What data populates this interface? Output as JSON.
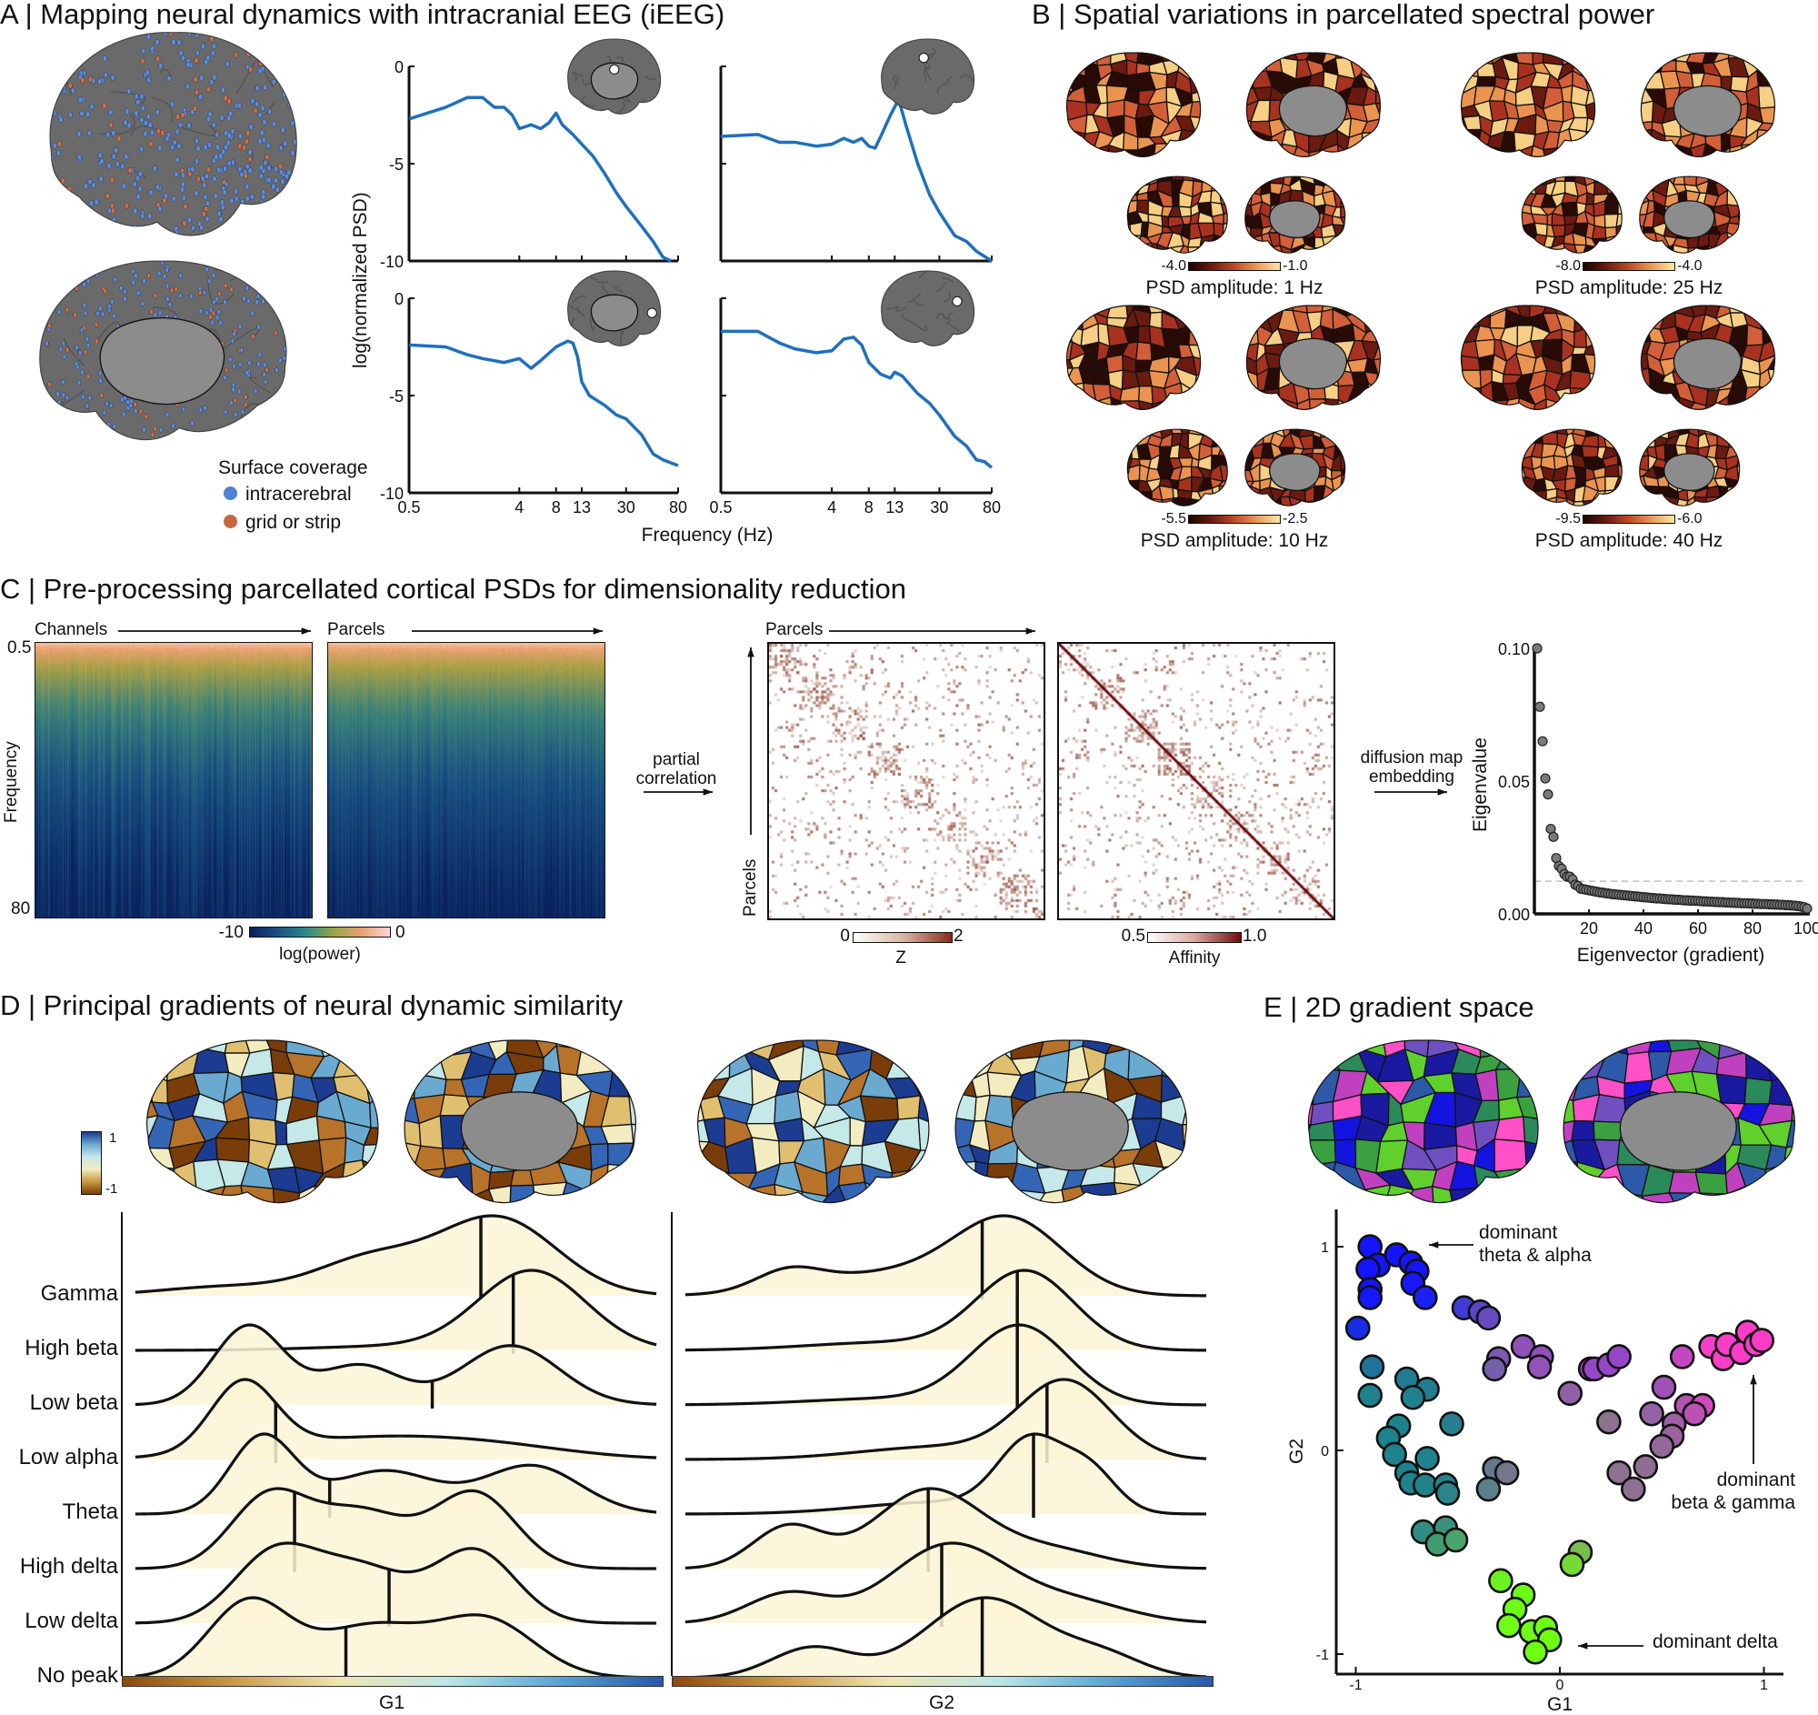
{
  "panels": {
    "A": {
      "title": "A | Mapping neural dynamics with intracranial EEG (iEEG)",
      "legend": {
        "title": "Surface coverage",
        "items": [
          {
            "label": "intracerebral",
            "color": "#4f82d6"
          },
          {
            "label": "grid or strip",
            "color": "#c8683f"
          }
        ]
      }
    },
    "B": {
      "title": "B | Spatial variations in parcellated spectral power",
      "maps": [
        {
          "label": "PSD amplitude: 1 Hz",
          "min": "-4.0",
          "max": "-1.0"
        },
        {
          "label": "PSD amplitude: 25 Hz",
          "min": "-8.0",
          "max": "-4.0"
        },
        {
          "label": "PSD amplitude: 10 Hz",
          "min": "-5.5",
          "max": "-2.5"
        },
        {
          "label": "PSD amplitude: 40 Hz",
          "min": "-9.5",
          "max": "-6.0"
        }
      ],
      "palette": [
        "#2a0a05",
        "#6b1a10",
        "#a8321f",
        "#d35f38",
        "#ea9450",
        "#f6cf84"
      ]
    },
    "C": {
      "title": "C | Pre-processing parcellated cortical PSDs for dimensionality reduction",
      "channels_label": "Channels",
      "parcels_label": "Parcels",
      "freq_label": "Frequency",
      "freq_top": "0.5",
      "freq_bottom": "80",
      "power_cbar": {
        "min": "-10",
        "max": "0",
        "label": "log(power)"
      },
      "step1": "partial\ncorrelation",
      "step1_lines": [
        "partial",
        "correlation"
      ],
      "step2_lines": [
        "diffusion map",
        "embedding"
      ],
      "matrix_parcels_top": "Parcels",
      "matrix_parcels_side": "Parcels",
      "z_cbar": {
        "min": "0",
        "max": "2",
        "label": "Z"
      },
      "affinity_cbar": {
        "min": "0.5",
        "max": "1.0",
        "label": "Affinity"
      }
    },
    "D": {
      "title": "D | Principal gradients of neural dynamic similarity",
      "cbar": {
        "max": "1",
        "min": "-1"
      },
      "palette": [
        "#7a3d0a",
        "#b8732a",
        "#e0c070",
        "#f2ecc0",
        "#c5e8e8",
        "#6aaad0",
        "#3565b5",
        "#1c3c92"
      ]
    },
    "E": {
      "title": "E | 2D gradient space",
      "palette": [
        "#1414e0",
        "#2c5aa8",
        "#2a8a5a",
        "#5fd02c",
        "#c040c0",
        "#ff50c8",
        "#7050c0",
        "#3aa040",
        "#1a1aa0"
      ],
      "annotations": {
        "theta_alpha": [
          "dominant",
          "theta & alpha"
        ],
        "beta_gamma": [
          "dominant",
          "beta & gamma"
        ],
        "delta": "dominant delta"
      }
    }
  },
  "chart_data": [
    {
      "id": "psd_examples",
      "type": "line",
      "xlabel": "Frequency (Hz)",
      "ylabel": "log(normalized PSD)",
      "xscale": "log",
      "xlim": [
        0.5,
        80
      ],
      "ylim": [
        -10,
        0
      ],
      "xticks": [
        0.5,
        4,
        8,
        13,
        30,
        80
      ],
      "xtick_labels": [
        "0.5",
        "4",
        "8",
        "13",
        "30",
        "80"
      ],
      "yticks": [
        0,
        -5,
        -10
      ],
      "ytick_labels": [
        "0",
        "-5",
        "-10"
      ],
      "color": "#1f6fbf",
      "series": [
        {
          "x": [
            0.5,
            1,
            1.5,
            2,
            2.5,
            3,
            3.5,
            4,
            5,
            6,
            7,
            8,
            9,
            11,
            13,
            16,
            20,
            25,
            30,
            40,
            50,
            60,
            70
          ],
          "y": [
            -2.7,
            -2.1,
            -1.6,
            -1.6,
            -2.1,
            -2.1,
            -2.5,
            -3.2,
            -3.0,
            -3.2,
            -2.9,
            -2.4,
            -3.0,
            -3.5,
            -4.0,
            -4.6,
            -5.5,
            -6.5,
            -7.2,
            -8.2,
            -9.0,
            -9.8,
            -10
          ]
        },
        {
          "x": [
            0.5,
            1,
            1.5,
            2,
            3,
            4,
            5,
            6,
            7,
            8,
            9,
            10,
            12,
            14,
            16,
            20,
            25,
            30,
            40,
            50,
            60,
            80
          ],
          "y": [
            -3.6,
            -3.5,
            -3.9,
            -3.9,
            -4.1,
            -4.0,
            -3.7,
            -3.9,
            -3.7,
            -4.1,
            -4.2,
            -3.6,
            -2.5,
            -1.7,
            -3.0,
            -5.0,
            -6.6,
            -7.5,
            -8.7,
            -9.0,
            -9.5,
            -10
          ]
        },
        {
          "x": [
            0.5,
            1,
            1.5,
            2,
            3,
            4,
            5,
            6,
            8,
            10,
            11,
            12,
            13,
            15,
            20,
            25,
            30,
            40,
            50,
            60,
            80
          ],
          "y": [
            -2.4,
            -2.5,
            -2.9,
            -3.1,
            -3.3,
            -3.1,
            -3.6,
            -3.2,
            -2.5,
            -2.2,
            -2.3,
            -3.0,
            -4.3,
            -5.0,
            -5.5,
            -6.0,
            -6.2,
            -7.0,
            -8.0,
            -8.3,
            -8.6
          ]
        },
        {
          "x": [
            0.5,
            1,
            1.5,
            2,
            3,
            4,
            5,
            6,
            7,
            8,
            10,
            12,
            13,
            15,
            20,
            25,
            30,
            40,
            50,
            60,
            70,
            80
          ],
          "y": [
            -1.7,
            -1.7,
            -2.3,
            -2.6,
            -2.8,
            -2.7,
            -2.1,
            -2.0,
            -2.4,
            -3.3,
            -3.9,
            -4.1,
            -3.8,
            -4.0,
            -4.9,
            -5.4,
            -6.0,
            -7.1,
            -7.6,
            -8.3,
            -8.4,
            -8.7
          ]
        }
      ]
    },
    {
      "id": "eigenvalues",
      "type": "scatter",
      "xlabel": "Eigenvector (gradient)",
      "ylabel": "Eigenvalue",
      "xlim": [
        0,
        100
      ],
      "ylim": [
        0,
        0.1
      ],
      "xticks": [
        20,
        40,
        60,
        80,
        100
      ],
      "xtick_labels": [
        "20",
        "40",
        "60",
        "80",
        "100"
      ],
      "yticks": [
        0,
        0.05,
        0.1
      ],
      "ytick_labels": [
        "0.00",
        "0.05",
        "0.10"
      ],
      "threshold": 0.0123,
      "values": [
        0.1,
        0.078,
        0.065,
        0.051,
        0.045,
        0.032,
        0.029,
        0.021,
        0.018,
        0.017,
        0.015,
        0.014,
        0.014,
        0.013,
        0.011,
        0.0105,
        0.0095,
        0.0093,
        0.0091,
        0.0089,
        0.0087,
        0.0085,
        0.0083,
        0.0081,
        0.008,
        0.0078,
        0.0077,
        0.0075,
        0.0074,
        0.0073,
        0.0072,
        0.0071,
        0.007,
        0.0069,
        0.0068,
        0.0067,
        0.0066,
        0.0065,
        0.0064,
        0.0063,
        0.0062,
        0.0061,
        0.006,
        0.0059,
        0.0058,
        0.0058,
        0.0057,
        0.0056,
        0.0055,
        0.0055,
        0.0054,
        0.0053,
        0.0053,
        0.0052,
        0.0051,
        0.0051,
        0.005,
        0.005,
        0.0049,
        0.0049,
        0.0048,
        0.0047,
        0.0047,
        0.0046,
        0.0046,
        0.0045,
        0.0045,
        0.0044,
        0.0044,
        0.0043,
        0.0043,
        0.0042,
        0.0042,
        0.0041,
        0.0041,
        0.004,
        0.004,
        0.004,
        0.0039,
        0.0039,
        0.0038,
        0.0038,
        0.0037,
        0.0037,
        0.0037,
        0.0036,
        0.0036,
        0.0035,
        0.0035,
        0.0034,
        0.0034,
        0.0033,
        0.0033,
        0.0032,
        0.0031,
        0.003,
        0.0029,
        0.0027,
        0.0025,
        0.002
      ]
    },
    {
      "id": "ridge_g1",
      "type": "area",
      "xlabel": "G1",
      "xlim": [
        -1,
        1
      ],
      "rows": [
        {
          "label": "Gamma",
          "median": 0.33,
          "components": [
            [
              0.39,
              0.22,
              1.0
            ],
            [
              -0.08,
              0.2,
              0.45
            ],
            [
              -0.6,
              0.25,
              0.12
            ]
          ]
        },
        {
          "label": "High beta",
          "median": 0.45,
          "components": [
            [
              0.52,
              0.2,
              1.0
            ],
            [
              0.0,
              0.3,
              0.05
            ]
          ]
        },
        {
          "label": "Low beta",
          "median": 0.15,
          "components": [
            [
              -0.53,
              0.13,
              0.8
            ],
            [
              -0.12,
              0.15,
              0.4
            ],
            [
              0.44,
              0.18,
              0.6
            ]
          ]
        },
        {
          "label": "Low alpha",
          "median": -0.43,
          "components": [
            [
              -0.55,
              0.12,
              1.0
            ],
            [
              -0.1,
              0.4,
              0.3
            ],
            [
              0.4,
              0.3,
              0.12
            ]
          ]
        },
        {
          "label": "Theta",
          "median": -0.23,
          "components": [
            [
              -0.48,
              0.12,
              0.8
            ],
            [
              -0.03,
              0.2,
              0.45
            ],
            [
              0.52,
              0.18,
              0.5
            ]
          ]
        },
        {
          "label": "High delta",
          "median": -0.36,
          "components": [
            [
              -0.46,
              0.14,
              0.6
            ],
            [
              -0.12,
              0.18,
              0.5
            ],
            [
              0.31,
              0.15,
              0.65
            ]
          ]
        },
        {
          "label": "Low delta",
          "median": -0.01,
          "components": [
            [
              -0.44,
              0.15,
              0.6
            ],
            [
              -0.12,
              0.18,
              0.5
            ],
            [
              0.31,
              0.15,
              0.65
            ]
          ]
        },
        {
          "label": "No peak",
          "median": -0.17,
          "components": [
            [
              -0.53,
              0.15,
              0.6
            ],
            [
              -0.08,
              0.2,
              0.4
            ],
            [
              0.35,
              0.18,
              0.45
            ]
          ]
        }
      ]
    },
    {
      "id": "ridge_g2",
      "type": "area",
      "xlabel": "G2",
      "xlim": [
        -1,
        1
      ],
      "rows": [
        {
          "label": "Gamma",
          "median": 0.15,
          "components": [
            [
              0.25,
              0.2,
              1.0
            ],
            [
              -0.57,
              0.12,
              0.25
            ],
            [
              -0.2,
              0.3,
              0.3
            ]
          ]
        },
        {
          "label": "High beta",
          "median": 0.28,
          "components": [
            [
              0.31,
              0.18,
              1.0
            ],
            [
              -0.2,
              0.3,
              0.1
            ]
          ]
        },
        {
          "label": "Low beta",
          "median": 0.28,
          "components": [
            [
              0.29,
              0.18,
              1.0
            ],
            [
              -0.2,
              0.3,
              0.08
            ]
          ]
        },
        {
          "label": "Low alpha",
          "median": 0.39,
          "components": [
            [
              0.46,
              0.17,
              0.9
            ],
            [
              0.0,
              0.3,
              0.15
            ]
          ]
        },
        {
          "label": "Theta",
          "median": 0.34,
          "components": [
            [
              0.33,
              0.12,
              0.7
            ],
            [
              0.55,
              0.1,
              0.4
            ],
            [
              0.0,
              0.3,
              0.12
            ]
          ]
        },
        {
          "label": "High delta",
          "median": -0.05,
          "components": [
            [
              -0.57,
              0.13,
              0.45
            ],
            [
              -0.05,
              0.2,
              0.85
            ],
            [
              0.4,
              0.2,
              0.2
            ]
          ]
        },
        {
          "label": "Low delta",
          "median": 0.0,
          "components": [
            [
              0.03,
              0.22,
              0.8
            ],
            [
              -0.57,
              0.15,
              0.3
            ],
            [
              0.5,
              0.2,
              0.2
            ]
          ]
        },
        {
          "label": "No peak",
          "median": 0.15,
          "components": [
            [
              0.16,
              0.22,
              0.8
            ],
            [
              -0.48,
              0.15,
              0.3
            ],
            [
              0.6,
              0.15,
              0.2
            ]
          ]
        }
      ]
    },
    {
      "id": "gradient_space",
      "type": "scatter",
      "xlabel": "G1",
      "ylabel": "G2",
      "xlim": [
        -1.05,
        1.1
      ],
      "ylim": [
        -1.1,
        1.1
      ],
      "xticks": [
        -1,
        0,
        1
      ],
      "xtick_labels": [
        "-1",
        "0",
        "1"
      ],
      "yticks": [
        -1,
        0,
        1
      ],
      "ytick_labels": [
        "-1",
        "0",
        "1"
      ],
      "points": [
        [
          -0.93,
          1.0
        ],
        [
          -0.89,
          0.91
        ],
        [
          -0.94,
          0.89
        ],
        [
          -0.8,
          0.96
        ],
        [
          -0.73,
          0.92
        ],
        [
          -0.7,
          0.88
        ],
        [
          -0.72,
          0.82
        ],
        [
          -0.93,
          0.79
        ],
        [
          -0.93,
          0.75
        ],
        [
          -0.66,
          0.75
        ],
        [
          -0.99,
          0.6
        ],
        [
          -0.47,
          0.7
        ],
        [
          -0.39,
          0.68
        ],
        [
          -0.35,
          0.65
        ],
        [
          -0.3,
          0.45
        ],
        [
          -0.32,
          0.4
        ],
        [
          -0.18,
          0.51
        ],
        [
          -0.09,
          0.46
        ],
        [
          -0.1,
          0.41
        ],
        [
          0.15,
          0.4
        ],
        [
          0.17,
          0.4
        ],
        [
          0.24,
          0.42
        ],
        [
          0.29,
          0.46
        ],
        [
          0.05,
          0.28
        ],
        [
          0.6,
          0.46
        ],
        [
          0.74,
          0.51
        ],
        [
          0.8,
          0.45
        ],
        [
          0.82,
          0.52
        ],
        [
          0.89,
          0.48
        ],
        [
          0.92,
          0.58
        ],
        [
          0.96,
          0.52
        ],
        [
          0.99,
          0.54
        ],
        [
          0.51,
          0.31
        ],
        [
          0.45,
          0.18
        ],
        [
          0.62,
          0.22
        ],
        [
          0.7,
          0.22
        ],
        [
          0.66,
          0.18
        ],
        [
          0.56,
          0.13
        ],
        [
          0.55,
          0.07
        ],
        [
          0.5,
          0.02
        ],
        [
          0.42,
          -0.08
        ],
        [
          0.29,
          -0.11
        ],
        [
          0.36,
          -0.19
        ],
        [
          0.24,
          0.14
        ],
        [
          -0.92,
          0.41
        ],
        [
          -0.93,
          0.27
        ],
        [
          -0.75,
          0.35
        ],
        [
          -0.65,
          0.3
        ],
        [
          -0.72,
          0.26
        ],
        [
          -0.79,
          0.12
        ],
        [
          -0.84,
          0.06
        ],
        [
          -0.81,
          -0.02
        ],
        [
          -0.75,
          -0.11
        ],
        [
          -0.73,
          -0.16
        ],
        [
          -0.65,
          -0.04
        ],
        [
          -0.66,
          -0.17
        ],
        [
          -0.56,
          -0.17
        ],
        [
          -0.55,
          -0.21
        ],
        [
          -0.53,
          0.13
        ],
        [
          -0.32,
          -0.09
        ],
        [
          -0.26,
          -0.11
        ],
        [
          -0.35,
          -0.19
        ],
        [
          -0.67,
          -0.4
        ],
        [
          -0.56,
          -0.38
        ],
        [
          -0.6,
          -0.46
        ],
        [
          -0.51,
          -0.44
        ],
        [
          0.1,
          -0.5
        ],
        [
          0.06,
          -0.56
        ],
        [
          -0.29,
          -0.64
        ],
        [
          -0.18,
          -0.71
        ],
        [
          -0.22,
          -0.78
        ],
        [
          -0.25,
          -0.86
        ],
        [
          -0.14,
          -0.89
        ],
        [
          -0.07,
          -0.87
        ],
        [
          -0.05,
          -0.93
        ],
        [
          -0.12,
          -0.99
        ]
      ]
    }
  ]
}
